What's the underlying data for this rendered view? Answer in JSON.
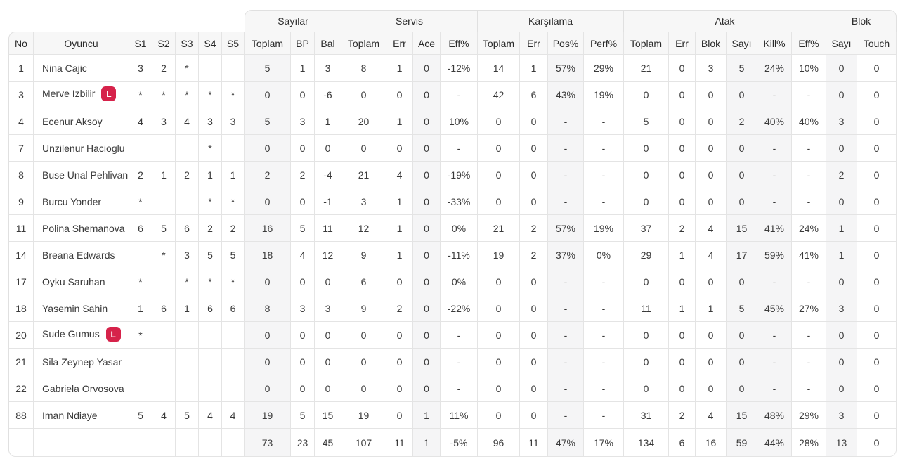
{
  "colors": {
    "libero_badge": "#d6224a",
    "header_bg": "#f7f7f7",
    "shaded_col": "#f5f5f6",
    "border": "#e0e0e0"
  },
  "table": {
    "columns": {
      "no": "No",
      "player": "Oyuncu",
      "sets": [
        "S1",
        "S2",
        "S3",
        "S4",
        "S5"
      ],
      "groups": [
        {
          "key": "points",
          "label": "Sayılar",
          "cols": [
            "Toplam",
            "BP",
            "Bal"
          ]
        },
        {
          "key": "serve",
          "label": "Servis",
          "cols": [
            "Toplam",
            "Err",
            "Ace",
            "Eff%"
          ]
        },
        {
          "key": "reception",
          "label": "Karşılama",
          "cols": [
            "Toplam",
            "Err",
            "Pos%",
            "Perf%"
          ]
        },
        {
          "key": "attack",
          "label": "Atak",
          "cols": [
            "Toplam",
            "Err",
            "Blok",
            "Sayı",
            "Kill%",
            "Eff%"
          ]
        },
        {
          "key": "block",
          "label": "Blok",
          "cols": [
            "Sayı",
            "Touch"
          ]
        }
      ]
    },
    "libero_badge": "L",
    "rows": [
      {
        "no": "1",
        "player": "Nina Cajic",
        "libero": false,
        "sets": [
          "3",
          "2",
          "*",
          "",
          ""
        ],
        "cells": [
          "5",
          "1",
          "3",
          "8",
          "1",
          "0",
          "-12%",
          "14",
          "1",
          "57%",
          "29%",
          "21",
          "0",
          "3",
          "5",
          "24%",
          "10%",
          "0",
          "0"
        ]
      },
      {
        "no": "3",
        "player": "Merve Izbilir",
        "libero": true,
        "sets": [
          "*",
          "*",
          "*",
          "*",
          "*"
        ],
        "cells": [
          "0",
          "0",
          "-6",
          "0",
          "0",
          "0",
          "-",
          "42",
          "6",
          "43%",
          "19%",
          "0",
          "0",
          "0",
          "0",
          "-",
          "-",
          "0",
          "0"
        ]
      },
      {
        "no": "4",
        "player": "Ecenur Aksoy",
        "libero": false,
        "sets": [
          "4",
          "3",
          "4",
          "3",
          "3"
        ],
        "cells": [
          "5",
          "3",
          "1",
          "20",
          "1",
          "0",
          "10%",
          "0",
          "0",
          "-",
          "-",
          "5",
          "0",
          "0",
          "2",
          "40%",
          "40%",
          "3",
          "0"
        ]
      },
      {
        "no": "7",
        "player": "Unzilenur Hacioglu",
        "libero": false,
        "sets": [
          "",
          "",
          "",
          "*",
          ""
        ],
        "cells": [
          "0",
          "0",
          "0",
          "0",
          "0",
          "0",
          "-",
          "0",
          "0",
          "-",
          "-",
          "0",
          "0",
          "0",
          "0",
          "-",
          "-",
          "0",
          "0"
        ]
      },
      {
        "no": "8",
        "player": "Buse Unal Pehlivan",
        "libero": false,
        "sets": [
          "2",
          "1",
          "2",
          "1",
          "1"
        ],
        "cells": [
          "2",
          "2",
          "-4",
          "21",
          "4",
          "0",
          "-19%",
          "0",
          "0",
          "-",
          "-",
          "0",
          "0",
          "0",
          "0",
          "-",
          "-",
          "2",
          "0"
        ]
      },
      {
        "no": "9",
        "player": "Burcu Yonder",
        "libero": false,
        "sets": [
          "*",
          "",
          "",
          "*",
          "*"
        ],
        "cells": [
          "0",
          "0",
          "-1",
          "3",
          "1",
          "0",
          "-33%",
          "0",
          "0",
          "-",
          "-",
          "0",
          "0",
          "0",
          "0",
          "-",
          "-",
          "0",
          "0"
        ]
      },
      {
        "no": "11",
        "player": "Polina Shemanova",
        "libero": false,
        "sets": [
          "6",
          "5",
          "6",
          "2",
          "2"
        ],
        "cells": [
          "16",
          "5",
          "11",
          "12",
          "1",
          "0",
          "0%",
          "21",
          "2",
          "57%",
          "19%",
          "37",
          "2",
          "4",
          "15",
          "41%",
          "24%",
          "1",
          "0"
        ]
      },
      {
        "no": "14",
        "player": "Breana Edwards",
        "libero": false,
        "sets": [
          "",
          "*",
          "3",
          "5",
          "5"
        ],
        "cells": [
          "18",
          "4",
          "12",
          "9",
          "1",
          "0",
          "-11%",
          "19",
          "2",
          "37%",
          "0%",
          "29",
          "1",
          "4",
          "17",
          "59%",
          "41%",
          "1",
          "0"
        ]
      },
      {
        "no": "17",
        "player": "Oyku Saruhan",
        "libero": false,
        "sets": [
          "*",
          "",
          "*",
          "*",
          "*"
        ],
        "cells": [
          "0",
          "0",
          "0",
          "6",
          "0",
          "0",
          "0%",
          "0",
          "0",
          "-",
          "-",
          "0",
          "0",
          "0",
          "0",
          "-",
          "-",
          "0",
          "0"
        ]
      },
      {
        "no": "18",
        "player": "Yasemin Sahin",
        "libero": false,
        "sets": [
          "1",
          "6",
          "1",
          "6",
          "6"
        ],
        "cells": [
          "8",
          "3",
          "3",
          "9",
          "2",
          "0",
          "-22%",
          "0",
          "0",
          "-",
          "-",
          "11",
          "1",
          "1",
          "5",
          "45%",
          "27%",
          "3",
          "0"
        ]
      },
      {
        "no": "20",
        "player": "Sude Gumus",
        "libero": true,
        "sets": [
          "*",
          "",
          "",
          "",
          ""
        ],
        "cells": [
          "0",
          "0",
          "0",
          "0",
          "0",
          "0",
          "-",
          "0",
          "0",
          "-",
          "-",
          "0",
          "0",
          "0",
          "0",
          "-",
          "-",
          "0",
          "0"
        ]
      },
      {
        "no": "21",
        "player": "Sila Zeynep Yasar",
        "libero": false,
        "sets": [
          "",
          "",
          "",
          "",
          ""
        ],
        "cells": [
          "0",
          "0",
          "0",
          "0",
          "0",
          "0",
          "-",
          "0",
          "0",
          "-",
          "-",
          "0",
          "0",
          "0",
          "0",
          "-",
          "-",
          "0",
          "0"
        ]
      },
      {
        "no": "22",
        "player": "Gabriela Orvosova",
        "libero": false,
        "sets": [
          "",
          "",
          "",
          "",
          ""
        ],
        "cells": [
          "0",
          "0",
          "0",
          "0",
          "0",
          "0",
          "-",
          "0",
          "0",
          "-",
          "-",
          "0",
          "0",
          "0",
          "0",
          "-",
          "-",
          "0",
          "0"
        ]
      },
      {
        "no": "88",
        "player": "Iman Ndiaye",
        "libero": false,
        "sets": [
          "5",
          "4",
          "5",
          "4",
          "4"
        ],
        "cells": [
          "19",
          "5",
          "15",
          "19",
          "0",
          "1",
          "11%",
          "0",
          "0",
          "-",
          "-",
          "31",
          "2",
          "4",
          "15",
          "48%",
          "29%",
          "3",
          "0"
        ]
      }
    ],
    "totals": {
      "cells": [
        "73",
        "23",
        "45",
        "107",
        "11",
        "1",
        "-5%",
        "96",
        "11",
        "47%",
        "17%",
        "134",
        "6",
        "16",
        "59",
        "44%",
        "28%",
        "13",
        "0"
      ]
    }
  }
}
